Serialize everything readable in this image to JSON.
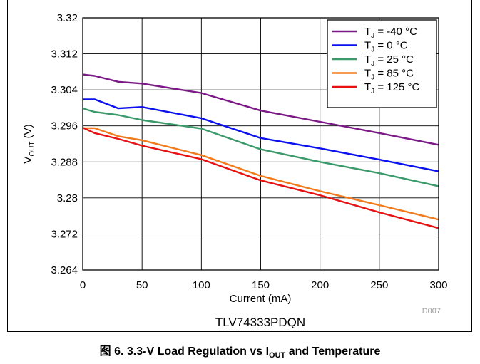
{
  "chart_data": {
    "type": "line",
    "title": "",
    "xlabel": "Current (mA)",
    "ylabel": "V_OUT (V)",
    "ylabel_main": "V",
    "ylabel_sub": "OUT",
    "ylabel_unit": " (V)",
    "xlim": [
      0,
      300
    ],
    "ylim": [
      3.264,
      3.32
    ],
    "x_ticks": [
      "0",
      "50",
      "100",
      "150",
      "200",
      "250",
      "300"
    ],
    "y_ticks": [
      "3.264",
      "3.272",
      "3.28",
      "3.288",
      "3.296",
      "3.304",
      "3.312",
      "3.32"
    ],
    "grid": true,
    "legend_position": "top-right",
    "series": [
      {
        "name": "T_J = -40 °C",
        "legend_pre": "T",
        "legend_sub": "J",
        "legend_post": " = -40 °C",
        "color": "#7b1a86",
        "x": [
          0,
          10,
          30,
          50,
          100,
          150,
          200,
          250,
          300
        ],
        "y": [
          3.3074,
          3.3071,
          3.3058,
          3.3054,
          3.3033,
          3.2994,
          3.2969,
          3.2944,
          3.2918
        ]
      },
      {
        "name": "T_J = 0 °C",
        "legend_pre": "T",
        "legend_sub": "J",
        "legend_post": " = 0 °C",
        "color": "#0a10f0",
        "x": [
          0,
          10,
          30,
          50,
          100,
          150,
          200,
          250,
          300
        ],
        "y": [
          3.3019,
          3.3019,
          3.2999,
          3.3002,
          3.2977,
          3.2933,
          3.291,
          3.2885,
          3.2859
        ]
      },
      {
        "name": "T_J = 25 °C",
        "legend_pre": "T",
        "legend_sub": "J",
        "legend_post": " = 25 °C",
        "color": "#3a9a6a",
        "x": [
          0,
          10,
          30,
          50,
          100,
          150,
          200,
          250,
          300
        ],
        "y": [
          3.2999,
          3.2991,
          3.2984,
          3.2973,
          3.2954,
          3.2908,
          3.288,
          3.2855,
          3.2826
        ]
      },
      {
        "name": "T_J = 85 °C",
        "legend_pre": "T",
        "legend_sub": "J",
        "legend_post": " = 85 °C",
        "color": "#f27a1a",
        "x": [
          0,
          5,
          10,
          30,
          50,
          100,
          150,
          200,
          250,
          300
        ],
        "y": [
          3.2955,
          3.2955,
          3.2955,
          3.2937,
          3.2928,
          3.2895,
          3.2849,
          3.2815,
          3.2784,
          3.2752
        ]
      },
      {
        "name": "T_J = 125 °C",
        "legend_pre": "T",
        "legend_sub": "J",
        "legend_post": " = 125 °C",
        "color": "#e81010",
        "x": [
          0,
          10,
          30,
          50,
          100,
          150,
          200,
          250,
          300
        ],
        "y": [
          3.2956,
          3.2944,
          3.2931,
          3.2916,
          3.2886,
          3.2839,
          3.2806,
          3.2768,
          3.2733
        ]
      }
    ]
  },
  "figure": {
    "code": "D007",
    "device": "TLV74333PDQN",
    "caption_pre": "图 6. 3.3-V Load Regulation vs I",
    "caption_sub": "OUT",
    "caption_post": " and Temperature"
  }
}
